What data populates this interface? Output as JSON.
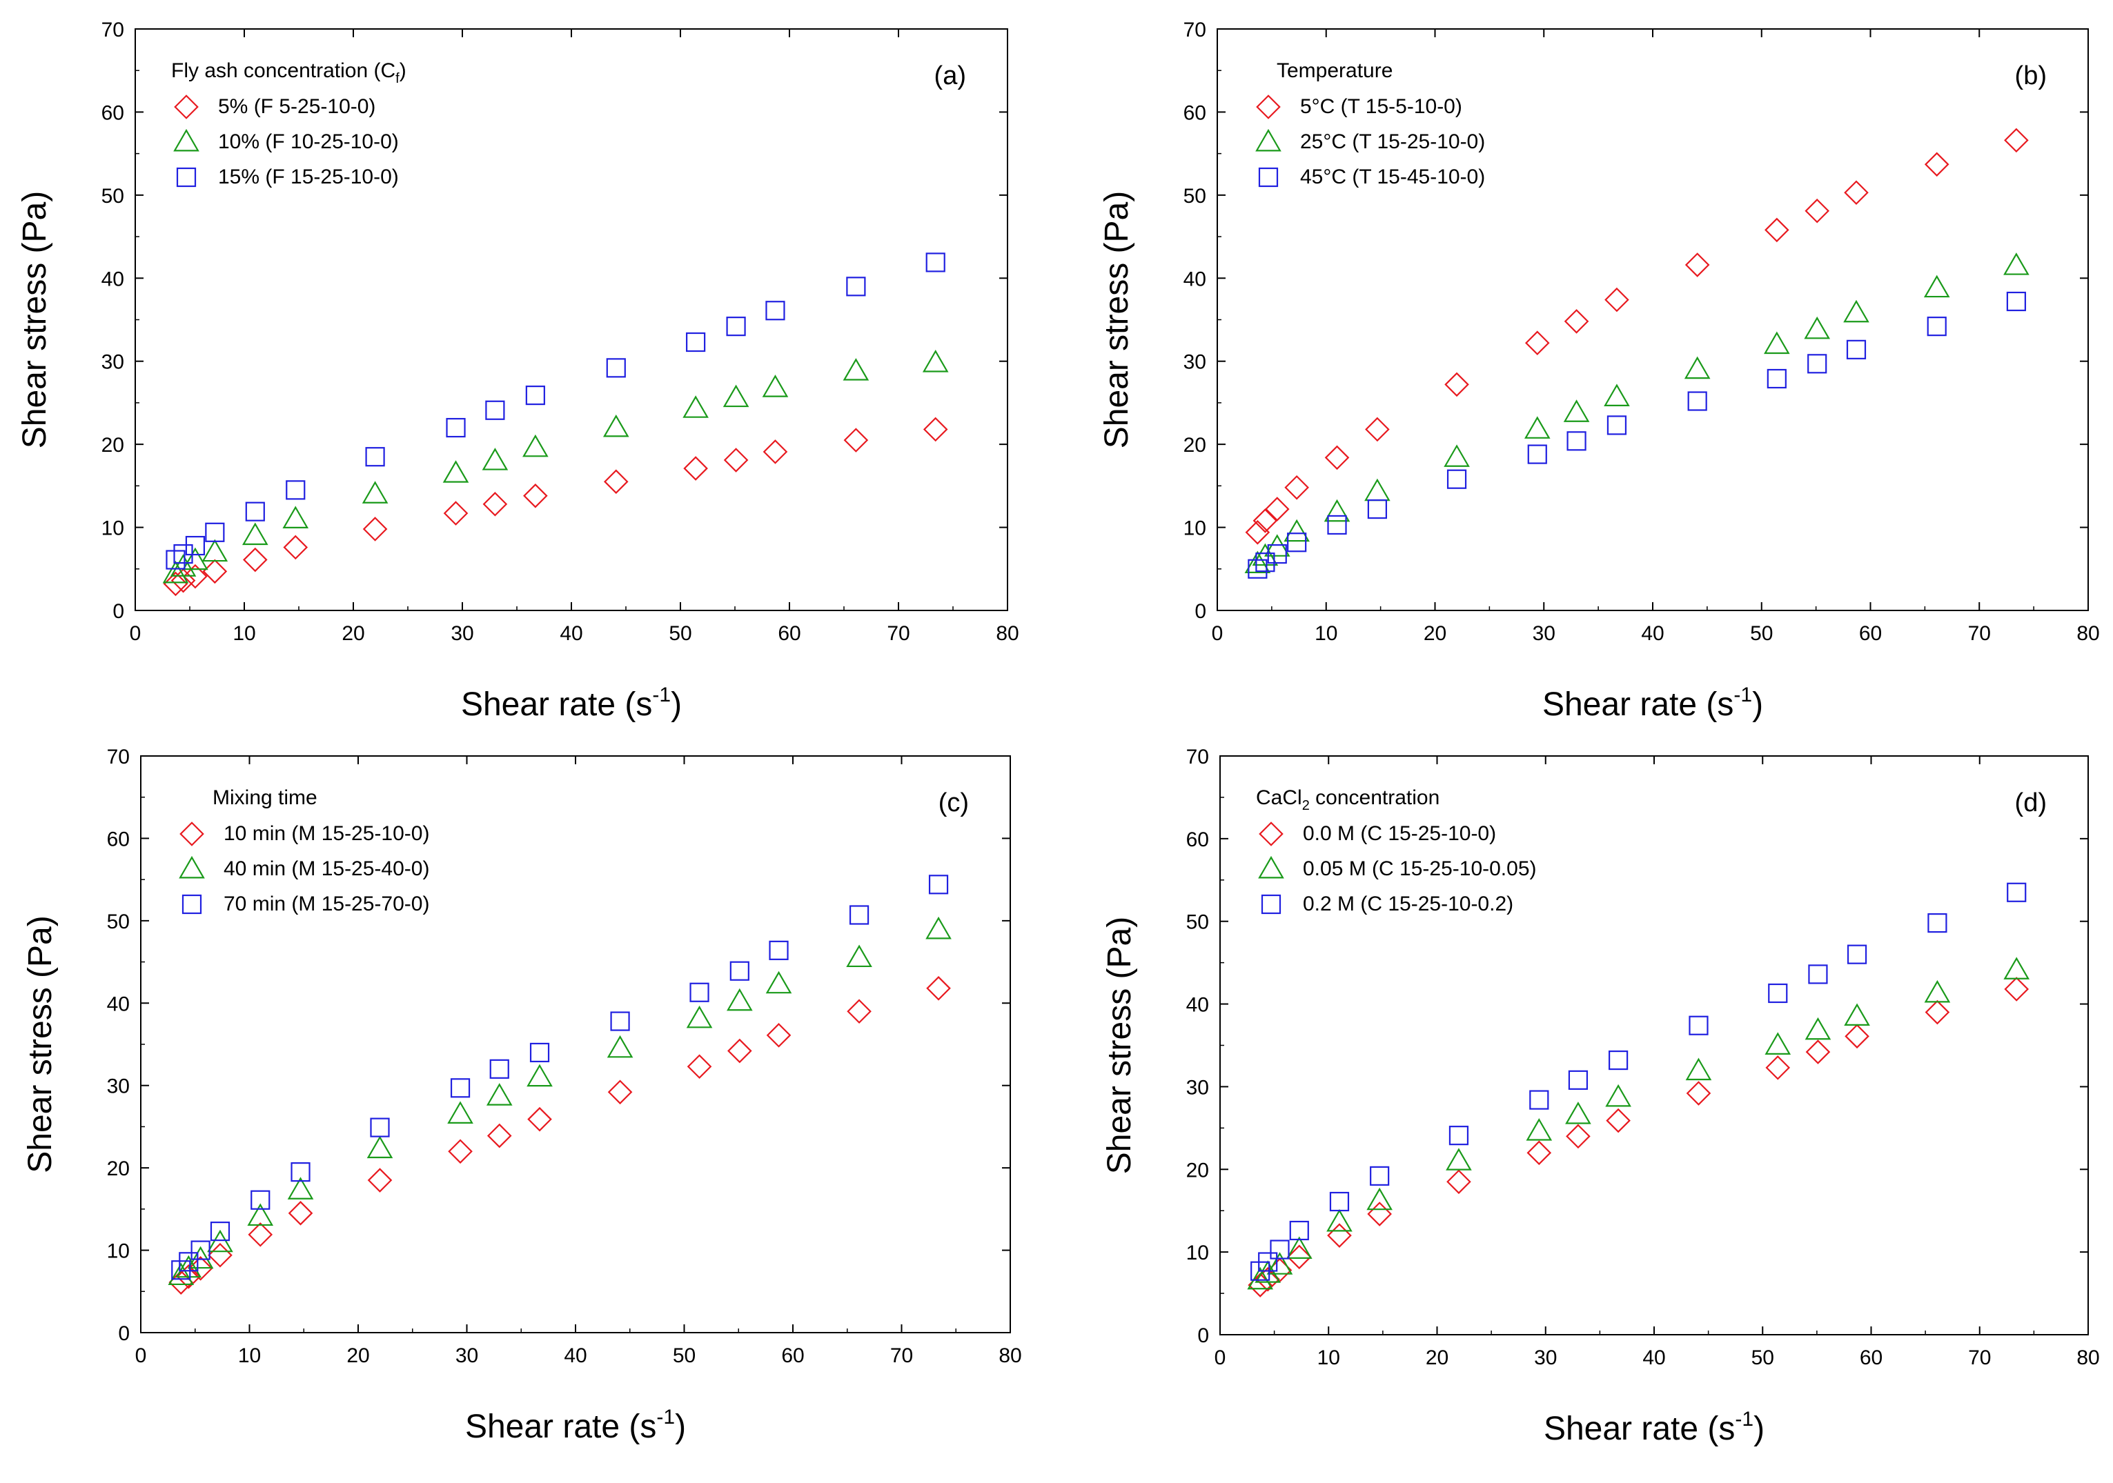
{
  "chart_data": [
    {
      "type": "scatter",
      "panel_label": "(a)",
      "xlabel": "Shear rate (s",
      "xlabel_sup": "-1",
      "xlabel_end": ")",
      "ylabel": "Shear stress (Pa)",
      "xlim": [
        0,
        80
      ],
      "ylim": [
        0,
        70
      ],
      "xticks": [
        "0",
        "10",
        "20",
        "30",
        "40",
        "50",
        "60",
        "70",
        "80"
      ],
      "yticks": [
        "0",
        "10",
        "20",
        "30",
        "40",
        "50",
        "60",
        "70"
      ],
      "grid": false,
      "legend_position": "top-left",
      "legend_title": "Fly ash concentration (C",
      "legend_title_sub": "f",
      "legend_title_end": ")",
      "x": [
        3.7,
        4.4,
        5.5,
        7.3,
        11.0,
        14.7,
        22.0,
        29.4,
        33.0,
        36.7,
        44.1,
        51.4,
        55.1,
        58.7,
        66.1,
        73.4
      ],
      "series": [
        {
          "name": "5% (F 5-25-10-0)",
          "marker": "diamond",
          "color": "#e8191f",
          "values": [
            3.2,
            3.6,
            4.1,
            4.7,
            6.1,
            7.6,
            9.8,
            11.7,
            12.8,
            13.8,
            15.5,
            17.1,
            18.1,
            19.1,
            20.5,
            21.8
          ]
        },
        {
          "name": "10% (F 10-25-10-0)",
          "marker": "triangle",
          "color": "#1a9a1a",
          "values": [
            4.4,
            5.2,
            6.0,
            7.0,
            9.0,
            11.0,
            14.0,
            16.5,
            18.0,
            19.6,
            22.0,
            24.3,
            25.6,
            26.8,
            28.8,
            29.8
          ]
        },
        {
          "name": "15% (F 15-25-10-0)",
          "marker": "square",
          "color": "#2020e0",
          "values": [
            6.1,
            6.8,
            7.8,
            9.4,
            11.9,
            14.5,
            18.5,
            22.0,
            24.1,
            25.9,
            29.2,
            32.3,
            34.2,
            36.1,
            39.0,
            41.9
          ]
        }
      ]
    },
    {
      "type": "scatter",
      "panel_label": "(b)",
      "xlabel": "Shear rate (s",
      "xlabel_sup": "-1",
      "xlabel_end": ")",
      "ylabel": "Shear stress (Pa)",
      "xlim": [
        0,
        80
      ],
      "ylim": [
        0,
        70
      ],
      "xticks": [
        "0",
        "10",
        "20",
        "30",
        "40",
        "50",
        "60",
        "70",
        "80"
      ],
      "yticks": [
        "0",
        "10",
        "20",
        "30",
        "40",
        "50",
        "60",
        "70"
      ],
      "grid": false,
      "legend_position": "top-left",
      "legend_title": "Temperature",
      "legend_title_sub": "",
      "legend_title_end": "",
      "x": [
        3.7,
        4.4,
        5.5,
        7.3,
        11.0,
        14.7,
        22.0,
        29.4,
        33.0,
        36.7,
        44.1,
        51.4,
        55.1,
        58.7,
        66.1,
        73.4
      ],
      "series": [
        {
          "name": "5°C (T 15-5-10-0)",
          "marker": "diamond",
          "color": "#e8191f",
          "values": [
            9.4,
            10.8,
            12.2,
            14.8,
            18.4,
            21.8,
            27.2,
            32.2,
            34.8,
            37.4,
            41.6,
            45.8,
            48.1,
            50.3,
            53.7,
            56.6
          ]
        },
        {
          "name": "25°C (T 15-25-10-0)",
          "marker": "triangle",
          "color": "#1a9a1a",
          "values": [
            5.6,
            6.5,
            7.6,
            9.4,
            11.8,
            14.3,
            18.4,
            21.8,
            23.8,
            25.7,
            29.0,
            32.0,
            33.8,
            35.8,
            38.8,
            41.5
          ]
        },
        {
          "name": "45°C (T 15-45-10-0)",
          "marker": "square",
          "color": "#2020e0",
          "values": [
            5.0,
            5.8,
            6.8,
            8.2,
            10.3,
            12.2,
            15.8,
            18.8,
            20.4,
            22.3,
            25.2,
            27.9,
            29.7,
            31.4,
            34.2,
            37.2
          ]
        }
      ]
    },
    {
      "type": "scatter",
      "panel_label": "(c)",
      "xlabel": "Shear rate (s",
      "xlabel_sup": "-1",
      "xlabel_end": ")",
      "ylabel": "Shear stress (Pa)",
      "xlim": [
        0,
        80
      ],
      "ylim": [
        0,
        70
      ],
      "xticks": [
        "0",
        "10",
        "20",
        "30",
        "40",
        "50",
        "60",
        "70",
        "80"
      ],
      "yticks": [
        "0",
        "10",
        "20",
        "30",
        "40",
        "50",
        "60",
        "70"
      ],
      "grid": false,
      "legend_position": "top-left",
      "legend_title": "Mixing time",
      "legend_title_sub": "",
      "legend_title_end": "",
      "x": [
        3.7,
        4.4,
        5.5,
        7.3,
        11.0,
        14.7,
        22.0,
        29.4,
        33.0,
        36.7,
        44.1,
        51.4,
        55.1,
        58.7,
        66.1,
        73.4
      ],
      "series": [
        {
          "name": "10 min (M 15-25-10-0)",
          "marker": "diamond",
          "color": "#e8191f",
          "values": [
            6.1,
            6.8,
            7.8,
            9.4,
            11.9,
            14.5,
            18.5,
            22.0,
            23.9,
            25.9,
            29.2,
            32.3,
            34.2,
            36.1,
            39.0,
            41.8
          ]
        },
        {
          "name": "40 min (M 15-25-40-0)",
          "marker": "triangle",
          "color": "#1a9a1a",
          "values": [
            6.9,
            7.8,
            8.9,
            10.9,
            14.1,
            17.3,
            22.3,
            26.5,
            28.7,
            31.0,
            34.5,
            38.1,
            40.2,
            42.3,
            45.5,
            48.9
          ]
        },
        {
          "name": "70 min (M 15-25-70-0)",
          "marker": "square",
          "color": "#2020e0",
          "values": [
            7.6,
            8.6,
            10.0,
            12.3,
            16.1,
            19.5,
            24.9,
            29.7,
            32.0,
            34.0,
            37.8,
            41.3,
            43.9,
            46.4,
            50.7,
            54.4
          ]
        }
      ]
    },
    {
      "type": "scatter",
      "panel_label": "(d)",
      "xlabel": "Shear rate (s",
      "xlabel_sup": "-1",
      "xlabel_end": ")",
      "ylabel": "Shear stress (Pa)",
      "xlim": [
        0,
        80
      ],
      "ylim": [
        0,
        70
      ],
      "xticks": [
        "0",
        "10",
        "20",
        "30",
        "40",
        "50",
        "60",
        "70",
        "80"
      ],
      "yticks": [
        "0",
        "10",
        "20",
        "30",
        "40",
        "50",
        "60",
        "70"
      ],
      "grid": false,
      "legend_position": "top-left",
      "legend_title": "CaCl",
      "legend_title_sub": "2",
      "legend_title_end": " concentration",
      "x": [
        3.7,
        4.4,
        5.5,
        7.3,
        11.0,
        14.7,
        22.0,
        29.4,
        33.0,
        36.7,
        44.1,
        51.4,
        55.1,
        58.7,
        66.1,
        73.4
      ],
      "series": [
        {
          "name": "0.0 M (C 15-25-10-0)",
          "marker": "diamond",
          "color": "#e8191f",
          "values": [
            6.0,
            6.7,
            7.8,
            9.4,
            12.0,
            14.6,
            18.5,
            22.0,
            24.0,
            25.9,
            29.2,
            32.3,
            34.2,
            36.1,
            39.0,
            41.8
          ]
        },
        {
          "name": "0.05 M (C 15-25-10-0.05)",
          "marker": "triangle",
          "color": "#1a9a1a",
          "values": [
            6.6,
            7.4,
            8.4,
            10.3,
            13.6,
            16.2,
            21.0,
            24.6,
            26.6,
            28.7,
            31.9,
            35.0,
            36.8,
            38.5,
            41.3,
            44.1
          ]
        },
        {
          "name": "0.2 M (C 15-25-10-0.2)",
          "marker": "square",
          "color": "#2020e0",
          "values": [
            7.7,
            8.8,
            10.3,
            12.6,
            16.1,
            19.2,
            24.1,
            28.4,
            30.8,
            33.2,
            37.4,
            41.3,
            43.6,
            46.0,
            49.8,
            53.5
          ]
        }
      ]
    }
  ]
}
